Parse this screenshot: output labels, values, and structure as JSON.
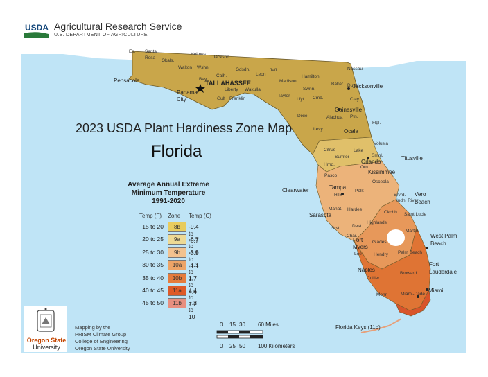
{
  "header": {
    "agency": "Agricultural Research Service",
    "department": "U.S. DEPARTMENT OF AGRICULTURE",
    "logo_text": "USDA"
  },
  "map_title": "2023 USDA Plant Hardiness Zone Map",
  "state": "Florida",
  "legend": {
    "title_lines": [
      "Average Annual Extreme",
      "Minimum Temperature",
      "1991-2020"
    ],
    "col_temp_f": "Temp (F)",
    "col_zone": "Zone",
    "col_temp_c": "Temp (C)",
    "rows": [
      {
        "temp_f": "15 to 20",
        "zone": "8b",
        "temp_c": "-9.4 to -6.7",
        "color": "#e8cc5e"
      },
      {
        "temp_f": "20 to 25",
        "zone": "9a",
        "temp_c": "-6.7 to -3.9",
        "color": "#edd994"
      },
      {
        "temp_f": "25 to 30",
        "zone": "9b",
        "temp_c": "-3.9 to -1.1",
        "color": "#f2c28f"
      },
      {
        "temp_f": "30 to 35",
        "zone": "10a",
        "temp_c": "-1.1 to 1.7",
        "color": "#eda467"
      },
      {
        "temp_f": "35 to 40",
        "zone": "10b",
        "temp_c": "1.7 to 4.4",
        "color": "#e57b3c"
      },
      {
        "temp_f": "40 to 45",
        "zone": "11a",
        "temp_c": "4.4 to 7.2",
        "color": "#de5a28"
      },
      {
        "temp_f": "45 to 50",
        "zone": "11b",
        "temp_c": "7.2 to 10",
        "color": "#e78f80"
      }
    ]
  },
  "scale": {
    "miles_ticks": [
      "0",
      "15",
      "30",
      "60 Miles"
    ],
    "km_ticks": [
      "0",
      "25",
      "50",
      "100 Kilometers"
    ]
  },
  "credit": {
    "lines": [
      "Mapping by the",
      "PRISM Climate Group",
      "College of Engineering",
      "Oregon State University"
    ]
  },
  "osu": {
    "line1": "Oregon State",
    "line2": "University"
  },
  "places": {
    "tallahassee": "TALLAHASSEE",
    "pensacola": "Pensacola",
    "panama_city_1": "Panama",
    "panama_city_2": "City",
    "jacksonville": "Jacksonville",
    "gainesville": "Gainesville",
    "ocala": "Ocala",
    "orlando": "Orlando",
    "titusville": "Titusville",
    "kissimmee": "Kissimmee",
    "clearwater": "Clearwater",
    "tampa": "Tampa",
    "sarasota": "Sarasota",
    "vero_beach_1": "Vero",
    "vero_beach_2": "Beach",
    "west_palm_1": "West Palm",
    "west_palm_2": "Beach",
    "fort_lauderdale_1": "Fort",
    "fort_lauderdale_2": "Lauderdale",
    "miami": "Miami",
    "fort_myers_1": "Fort",
    "fort_myers_2": "Myers",
    "naples": "Naples",
    "florida_keys": "Florida Keys (11b)"
  },
  "counties": [
    "Es.",
    "Santa",
    "Rosa",
    "Okals.",
    "Holmes",
    "Jackson",
    "Walton",
    "Wshn.",
    "Bay",
    "Calh.",
    "Gdsdn.",
    "Leon",
    "Jeff.",
    "Liberty",
    "Wakulla",
    "Gulf",
    "Franklin",
    "Madison",
    "Hamilton",
    "Taylor",
    "Lfyt.",
    "Swnn.",
    "Cmb.",
    "Baker",
    "Nassau",
    "Duval",
    "Clay",
    "Dixie",
    "Levy",
    "Alachua",
    "Ptn.",
    "Flgl.",
    "Volusia",
    "Citrus",
    "Sumter",
    "Lake",
    "Hrnd.",
    "Smnl.",
    "Orn.",
    "Pasco",
    "Hills",
    "Polk",
    "Osceola",
    "Brvrd.",
    "Indn. River",
    "Manat.",
    "Hardee",
    "Highlands",
    "Okchb.",
    "Saint Lucie",
    "Martin",
    "Dest.",
    "Glades",
    "Lee",
    "Hendry",
    "Palm Beach",
    "Collier",
    "Broward",
    "Monr.",
    "Miami-Dade",
    "Char.",
    "Srst."
  ]
}
